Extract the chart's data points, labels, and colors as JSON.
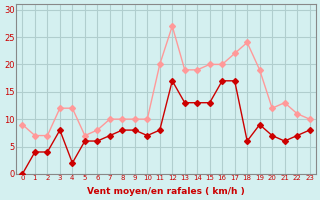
{
  "x": [
    0,
    1,
    2,
    3,
    4,
    5,
    6,
    7,
    8,
    9,
    10,
    11,
    12,
    13,
    14,
    15,
    16,
    17,
    18,
    19,
    20,
    21,
    22,
    23
  ],
  "y_mean": [
    0,
    4,
    4,
    8,
    2,
    6,
    6,
    7,
    8,
    8,
    7,
    8,
    17,
    13,
    13,
    13,
    17,
    17,
    6,
    9,
    7,
    6,
    7,
    8
  ],
  "y_gust": [
    9,
    7,
    7,
    12,
    12,
    7,
    8,
    10,
    10,
    10,
    10,
    20,
    27,
    19,
    19,
    20,
    20,
    22,
    24,
    19,
    12,
    13,
    11,
    10
  ],
  "bg_color": "#d4f0f0",
  "grid_color": "#b0cece",
  "line_mean_color": "#cc0000",
  "line_gust_color": "#ff9999",
  "xlabel": "Vent moyen/en rafales ( km/h )",
  "xlabel_color": "#cc0000",
  "ylabel_color": "#cc0000",
  "yticks": [
    0,
    5,
    10,
    15,
    20,
    25,
    30
  ],
  "ylim": [
    0,
    31
  ],
  "xlim": [
    -0.5,
    23.5
  ]
}
